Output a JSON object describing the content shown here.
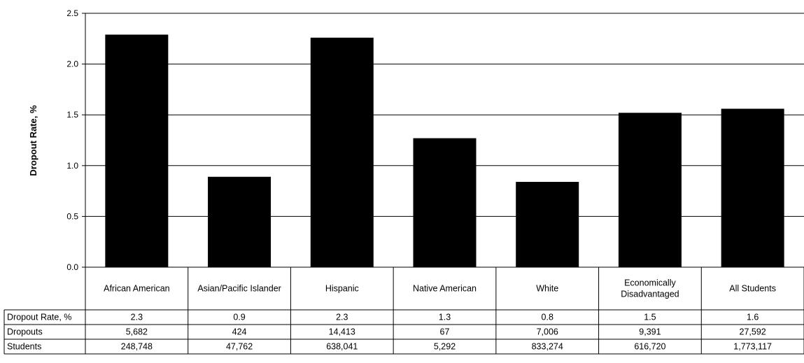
{
  "chart_data": {
    "type": "bar",
    "ylabel": "Dropout Rate, %",
    "ylim": [
      0,
      2.5
    ],
    "yticks": [
      "0.0",
      "0.5",
      "1.0",
      "1.5",
      "2.0",
      "2.5"
    ],
    "grid": true,
    "bar_color": "#000000",
    "categories": [
      [
        "African American"
      ],
      [
        "Asian/Pacific Islander"
      ],
      [
        "Hispanic"
      ],
      [
        "Native American"
      ],
      [
        "White"
      ],
      [
        "Economically",
        "Disadvantaged"
      ],
      [
        "All Students"
      ]
    ],
    "values": [
      2.29,
      0.89,
      2.26,
      1.27,
      0.84,
      1.52,
      1.56
    ],
    "table": {
      "rows": [
        {
          "label": "Dropout Rate, %",
          "cells": [
            "2.3",
            "0.9",
            "2.3",
            "1.3",
            "0.8",
            "1.5",
            "1.6"
          ]
        },
        {
          "label": "Dropouts",
          "cells": [
            "5,682",
            "424",
            "14,413",
            "67",
            "7,006",
            "9,391",
            "27,592"
          ]
        },
        {
          "label": "Students",
          "cells": [
            "248,748",
            "47,762",
            "638,041",
            "5,292",
            "833,274",
            "616,720",
            "1,773,117"
          ]
        }
      ]
    }
  }
}
